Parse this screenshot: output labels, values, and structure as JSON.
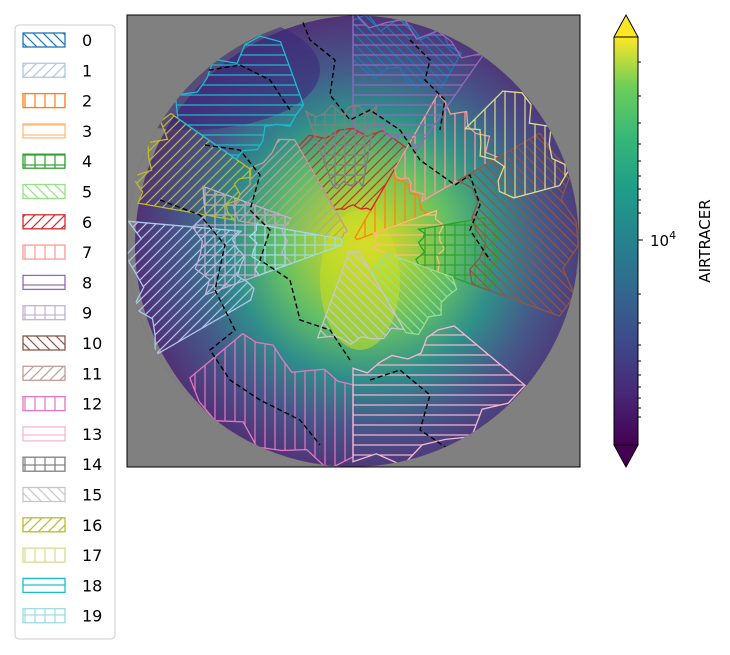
{
  "chart_data": {
    "type": "heatmap",
    "title": "",
    "projection": "north-polar stereographic",
    "colorbar": {
      "label": "AIRTRACER",
      "scale": "log",
      "colormap": "viridis",
      "extend": "both",
      "major_tick_value": 10000,
      "major_tick_label": {
        "base": "10",
        "exponent": "4"
      }
    },
    "legend": {
      "placement": "left",
      "entries": [
        {
          "label": "0",
          "color": "#1f77b4",
          "hatch": "backslash"
        },
        {
          "label": "1",
          "color": "#aec7e8",
          "hatch": "slash"
        },
        {
          "label": "2",
          "color": "#ff7f0e",
          "hatch": "vertical"
        },
        {
          "label": "3",
          "color": "#ffbb78",
          "hatch": "horizontal"
        },
        {
          "label": "4",
          "color": "#2ca02c",
          "hatch": "grid"
        },
        {
          "label": "5",
          "color": "#98df8a",
          "hatch": "backslash"
        },
        {
          "label": "6",
          "color": "#d62728",
          "hatch": "slash"
        },
        {
          "label": "7",
          "color": "#ff9896",
          "hatch": "vertical"
        },
        {
          "label": "8",
          "color": "#9467bd",
          "hatch": "horizontal"
        },
        {
          "label": "9",
          "color": "#c5b0d5",
          "hatch": "grid"
        },
        {
          "label": "10",
          "color": "#8c564b",
          "hatch": "backslash"
        },
        {
          "label": "11",
          "color": "#c49c94",
          "hatch": "slash"
        },
        {
          "label": "12",
          "color": "#e377c2",
          "hatch": "vertical"
        },
        {
          "label": "13",
          "color": "#f7b6d2",
          "hatch": "horizontal"
        },
        {
          "label": "14",
          "color": "#7f7f7f",
          "hatch": "grid"
        },
        {
          "label": "15",
          "color": "#c7c7c7",
          "hatch": "backslash"
        },
        {
          "label": "16",
          "color": "#bcbd22",
          "hatch": "slash"
        },
        {
          "label": "17",
          "color": "#dbdb8d",
          "hatch": "vertical"
        },
        {
          "label": "18",
          "color": "#17becf",
          "hatch": "horizontal"
        },
        {
          "label": "19",
          "color": "#9edae5",
          "hatch": "grid"
        }
      ]
    },
    "map_background_color": "#808080"
  }
}
